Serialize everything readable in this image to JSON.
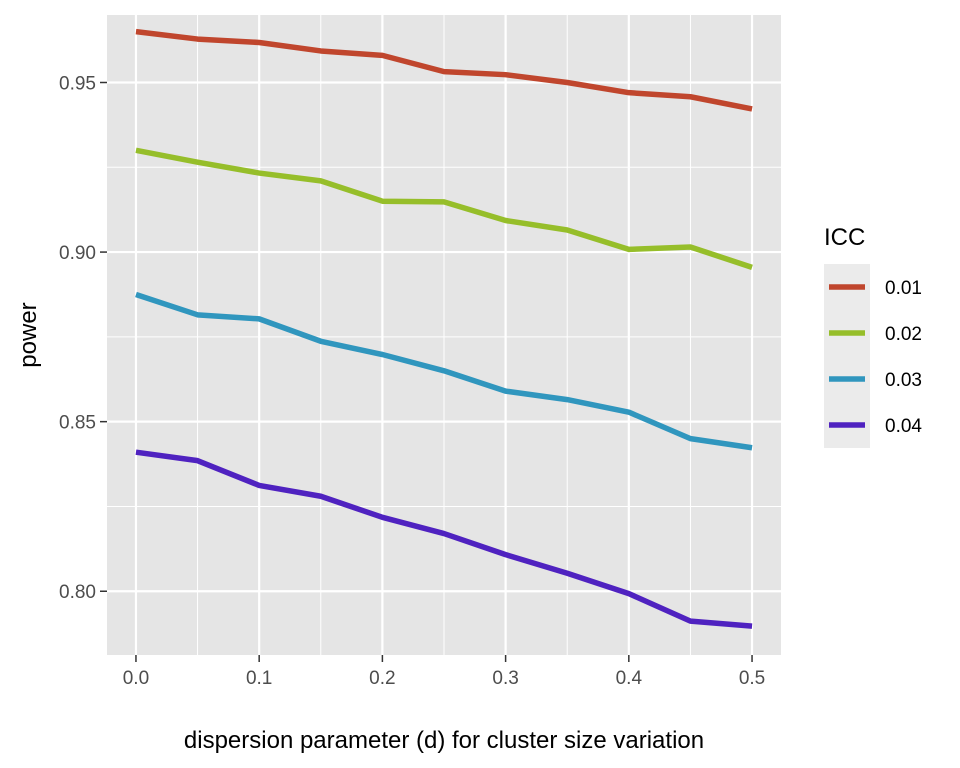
{
  "chart_data": {
    "type": "line",
    "xlabel": "dispersion parameter (d) for cluster size variation",
    "ylabel": "power",
    "xlim": [
      -0.0235,
      0.5235
    ],
    "ylim": [
      0.7812,
      0.9699
    ],
    "xticks": [
      0.0,
      0.1,
      0.2,
      0.3,
      0.4,
      0.5
    ],
    "xtick_labels": [
      "0.0",
      "0.1",
      "0.2",
      "0.3",
      "0.4",
      "0.5"
    ],
    "yticks": [
      0.8,
      0.85,
      0.9,
      0.95
    ],
    "ytick_labels": [
      "0.80",
      "0.85",
      "0.90",
      "0.95"
    ],
    "grid": true,
    "legend": {
      "title": "ICC",
      "position": "right"
    },
    "x": [
      0.0,
      0.05,
      0.1,
      0.15,
      0.2,
      0.25,
      0.3,
      0.35,
      0.4,
      0.45,
      0.5
    ],
    "series": [
      {
        "name": "0.01",
        "color": "#C0462D",
        "values": [
          0.965,
          0.9628,
          0.9618,
          0.9593,
          0.958,
          0.9532,
          0.9523,
          0.95,
          0.947,
          0.9458,
          0.9422
        ]
      },
      {
        "name": "0.02",
        "color": "#96BE2A",
        "values": [
          0.93,
          0.9265,
          0.9233,
          0.921,
          0.915,
          0.9148,
          0.9093,
          0.9065,
          0.9008,
          0.9015,
          0.8955
        ]
      },
      {
        "name": "0.03",
        "color": "#3096BE",
        "values": [
          0.8875,
          0.8815,
          0.8803,
          0.8737,
          0.8698,
          0.865,
          0.859,
          0.8565,
          0.8528,
          0.845,
          0.8423
        ]
      },
      {
        "name": "0.04",
        "color": "#4F22C0",
        "values": [
          0.841,
          0.8385,
          0.8312,
          0.828,
          0.8218,
          0.817,
          0.8108,
          0.8053,
          0.7993,
          0.7912,
          0.7897
        ]
      }
    ]
  },
  "colors": {
    "panel_background": "#E5E5E5",
    "grid": "#FFFFFF",
    "legend_key_background": "#EBEBEB"
  }
}
